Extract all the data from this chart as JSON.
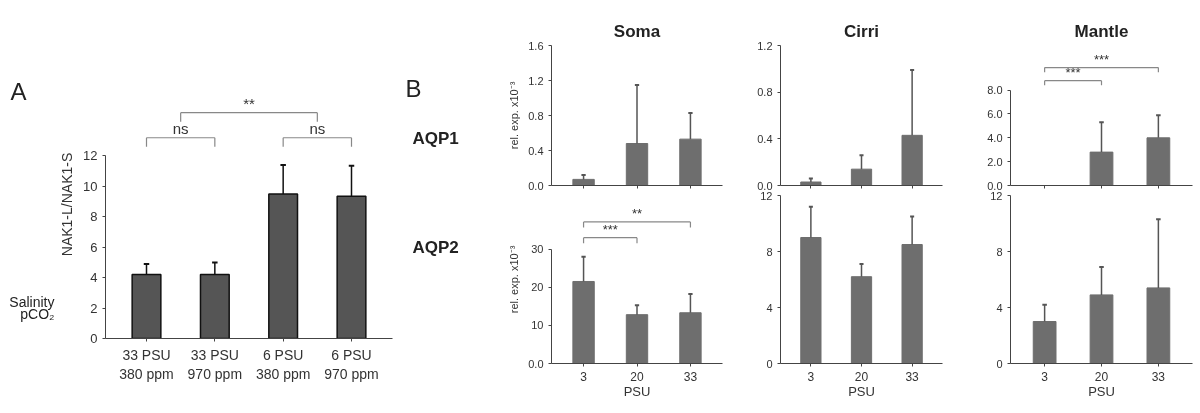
{
  "chart_data": [
    {
      "type": "bar",
      "ylabel": "NAK1-L/NAK1-S",
      "categories": [
        "33 PSU\n380 ppm",
        "33 PSU\n970 ppm",
        "6 PSU\n380 ppm",
        "6 PSU\n970 ppm"
      ],
      "values": [
        4.2,
        4.2,
        9.5,
        9.35
      ],
      "errors": [
        [
          4.2,
          4.9
        ],
        [
          4.2,
          5.0
        ],
        [
          9.5,
          11.4
        ],
        [
          9.35,
          11.35
        ]
      ],
      "color": "#555555",
      "ylim": [
        0,
        12
      ],
      "yticks": [
        0,
        2,
        4,
        6,
        8,
        10,
        12
      ],
      "grid": false,
      "annotations": [
        "A",
        "**",
        "ns",
        "ns",
        "Salinity",
        "pCO₂"
      ]
    },
    {
      "type": "bar",
      "title": "Soma",
      "ylabel": "rel. exp. x10⁻³",
      "categories": [
        "3",
        "20",
        "33"
      ],
      "values": [
        0.07,
        0.48,
        0.53
      ],
      "errors": [
        [
          0.07,
          0.12
        ],
        [
          0.48,
          1.15
        ],
        [
          0.53,
          0.83
        ]
      ],
      "color": "#6e6e6e",
      "ylim": [
        0,
        1.6
      ],
      "yticks": [
        {
          "value": 0,
          "label": "0.0"
        },
        0.4,
        0.8,
        1.2,
        1.6
      ],
      "grid": false,
      "tick_labels": "y",
      "annotations": [
        "B",
        "AQP1"
      ]
    },
    {
      "type": "bar",
      "title": "Cirri",
      "categories": [
        "3",
        "20",
        "33"
      ],
      "values": [
        0.03,
        0.14,
        0.43
      ],
      "errors": [
        [
          0.03,
          0.06
        ],
        [
          0.14,
          0.26
        ],
        [
          0.43,
          0.99
        ]
      ],
      "color": "#6e6e6e",
      "ylim": [
        0,
        1.2
      ],
      "yticks": [
        {
          "value": 0,
          "label": "0.0"
        },
        0.4,
        0.8,
        1.2
      ],
      "grid": false,
      "tick_labels": "y"
    },
    {
      "type": "bar",
      "title": "Mantle",
      "categories": [
        "3",
        "20",
        "33"
      ],
      "values": [
        0,
        2.8,
        4.0
      ],
      "errors": [
        null,
        [
          2.8,
          5.3
        ],
        [
          4.0,
          5.9
        ]
      ],
      "color": "#6e6e6e",
      "ylim": [
        0,
        8
      ],
      "yticks": [
        {
          "value": 0,
          "label": "0.0"
        },
        {
          "value": 2,
          "label": "2.0"
        },
        {
          "value": 4,
          "label": "4.0"
        },
        {
          "value": 6,
          "label": "6.0"
        },
        {
          "value": 8,
          "label": "8.0"
        }
      ],
      "grid": false,
      "tick_labels": "y",
      "annotations": [
        "***",
        "***"
      ]
    },
    {
      "type": "bar",
      "xlabel": "PSU",
      "ylabel": "rel. exp. x10⁻³",
      "categories": [
        "3",
        "20",
        "33"
      ],
      "values": [
        21.5,
        12.8,
        13.3
      ],
      "errors": [
        [
          21.5,
          28
        ],
        [
          12.8,
          15.3
        ],
        [
          13.3,
          18.2
        ]
      ],
      "color": "#6e6e6e",
      "ylim": [
        0,
        30
      ],
      "yticks": [
        {
          "value": 0,
          "label": "0.0"
        },
        10,
        20,
        30
      ],
      "grid": false,
      "annotations": [
        "AQP2",
        "**",
        "***"
      ]
    },
    {
      "type": "bar",
      "xlabel": "PSU",
      "categories": [
        "3",
        "20",
        "33"
      ],
      "values": [
        9.0,
        6.2,
        8.5
      ],
      "errors": [
        [
          9.0,
          11.2
        ],
        [
          6.2,
          7.1
        ],
        [
          8.5,
          10.5
        ]
      ],
      "color": "#6e6e6e",
      "ylim": [
        0,
        12
      ],
      "yticks": [
        0,
        4,
        8,
        12
      ],
      "grid": false
    },
    {
      "type": "bar",
      "xlabel": "PSU",
      "categories": [
        "3",
        "20",
        "33"
      ],
      "values": [
        3.0,
        4.9,
        5.4
      ],
      "errors": [
        [
          3.0,
          4.2
        ],
        [
          4.9,
          6.9
        ],
        [
          5.4,
          10.3
        ]
      ],
      "color": "#6e6e6e",
      "ylim": [
        0,
        12
      ],
      "yticks": [
        0,
        4,
        8,
        12
      ],
      "grid": false
    }
  ]
}
